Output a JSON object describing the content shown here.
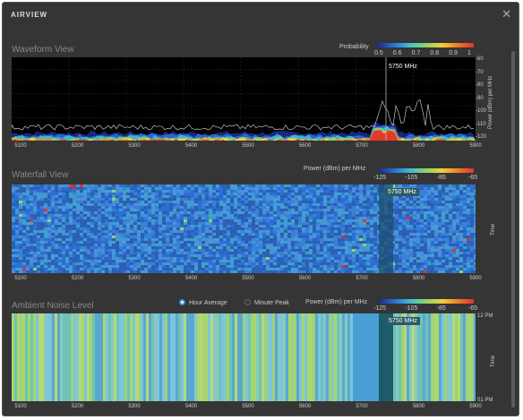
{
  "window": {
    "title": "AIRVIEW",
    "close_icon": "close-icon"
  },
  "waveform": {
    "title": "Waveform View",
    "legend_label": "Probability",
    "legend_ticks": [
      "0.5",
      "0.6",
      "0.7",
      "0.8",
      "0.9",
      "1"
    ],
    "y_ticks": [
      "-60",
      "-70",
      "-80",
      "-90",
      "-100",
      "-110",
      "-120"
    ],
    "y_label": "Power (dBm) per MHz",
    "marker": "5750 MHz"
  },
  "waterfall": {
    "title": "Waterfall View",
    "legend_label": "Power (dBm) per MHz",
    "legend_ticks": [
      "-125",
      "-105",
      "-85",
      "-65"
    ],
    "y_label": "Time",
    "marker": "5750 MHz"
  },
  "ambient": {
    "title": "Ambient Noise Level",
    "radio_hour": "Hour Average",
    "radio_minute": "Minute Peak",
    "legend_label": "Power (dBm) per MHz",
    "legend_ticks": [
      "-125",
      "-105",
      "-85",
      "-65"
    ],
    "y_top": "12 PM",
    "y_bottom": "01 PM",
    "y_label": "Time",
    "marker": "5750 MHz"
  },
  "x_ticks": [
    "5100",
    "5200",
    "5300",
    "5400",
    "5500",
    "5600",
    "5700",
    "5800",
    "5900"
  ],
  "colors": {
    "window_bg": "#353535",
    "accent": "#2e9bd6",
    "marker": "#2b5a66"
  }
}
